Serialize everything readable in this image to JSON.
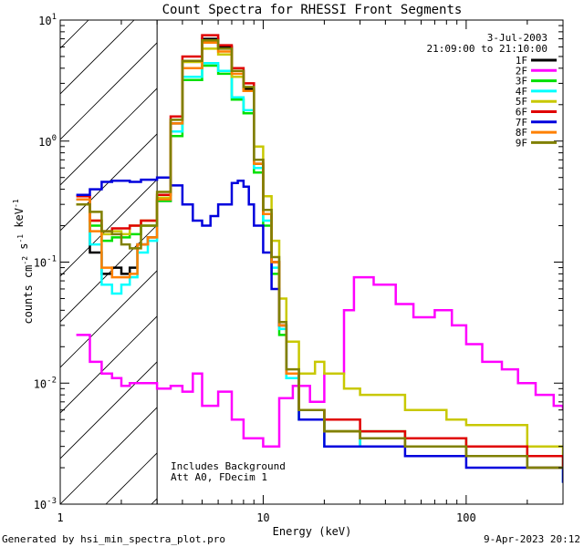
{
  "chart_data": {
    "type": "line",
    "title": "Count Spectra for RHESSI Front Segments",
    "xlabel": "Energy (keV)",
    "ylabel": "counts cm^-2 s^-1 keV^-1",
    "xscale": "log",
    "yscale": "log",
    "xlim": [
      1,
      300
    ],
    "ylim": [
      0.001,
      10
    ],
    "x_tick_labels": [
      "1",
      "10",
      "100"
    ],
    "x_tick_values": [
      1,
      10,
      100
    ],
    "y_tick_labels": [
      "10^-3",
      "10^-2",
      "10^-1",
      "10^0",
      "10^1"
    ],
    "y_tick_values": [
      0.001,
      0.01,
      0.1,
      1,
      10
    ],
    "shaded_region": {
      "x_range": [
        1,
        3
      ],
      "style": "diagonal hatch"
    },
    "date": "3-Jul-2003",
    "time_range": "21:09:00 to 21:10:00",
    "annotations": [
      "Includes Background",
      "Att A0, FDecim 1"
    ],
    "series": [
      {
        "name": "1F",
        "color": "#000000",
        "points": [
          [
            1.2,
            0.33
          ],
          [
            1.4,
            0.12
          ],
          [
            1.6,
            0.08
          ],
          [
            1.8,
            0.09
          ],
          [
            2.0,
            0.08
          ],
          [
            2.2,
            0.09
          ],
          [
            2.4,
            0.14
          ],
          [
            2.7,
            0.16
          ],
          [
            3.0,
            0.32
          ],
          [
            3.5,
            1.4
          ],
          [
            4.0,
            4.6
          ],
          [
            5.0,
            7.0
          ],
          [
            6.0,
            6.0
          ],
          [
            7.0,
            3.8
          ],
          [
            8.0,
            2.7
          ],
          [
            9.0,
            0.65
          ],
          [
            10.0,
            0.25
          ],
          [
            11.0,
            0.1
          ],
          [
            12.0,
            0.03
          ],
          [
            13.0,
            0.012
          ],
          [
            15.0,
            0.006
          ],
          [
            20.0,
            0.004
          ],
          [
            30.0,
            0.003
          ],
          [
            50.0,
            0.003
          ],
          [
            100.0,
            0.0025
          ],
          [
            200.0,
            0.002
          ],
          [
            300.0,
            0.002
          ]
        ]
      },
      {
        "name": "2F",
        "color": "#ff00ff",
        "points": [
          [
            1.2,
            0.025
          ],
          [
            1.4,
            0.015
          ],
          [
            1.6,
            0.012
          ],
          [
            1.8,
            0.011
          ],
          [
            2.0,
            0.0095
          ],
          [
            2.2,
            0.01
          ],
          [
            2.5,
            0.01
          ],
          [
            3.0,
            0.009
          ],
          [
            3.5,
            0.0095
          ],
          [
            4.0,
            0.0085
          ],
          [
            4.5,
            0.012
          ],
          [
            5.0,
            0.0065
          ],
          [
            6.0,
            0.0085
          ],
          [
            7.0,
            0.005
          ],
          [
            8.0,
            0.0035
          ],
          [
            10.0,
            0.003
          ],
          [
            12.0,
            0.0075
          ],
          [
            14.0,
            0.0095
          ],
          [
            17.0,
            0.007
          ],
          [
            20.0,
            0.012
          ],
          [
            25.0,
            0.04
          ],
          [
            28.0,
            0.075
          ],
          [
            35.0,
            0.065
          ],
          [
            45.0,
            0.045
          ],
          [
            55.0,
            0.035
          ],
          [
            70.0,
            0.04
          ],
          [
            85.0,
            0.03
          ],
          [
            100.0,
            0.021
          ],
          [
            120.0,
            0.015
          ],
          [
            150.0,
            0.013
          ],
          [
            180.0,
            0.01
          ],
          [
            220.0,
            0.008
          ],
          [
            270.0,
            0.0065
          ],
          [
            300.0,
            0.006
          ]
        ]
      },
      {
        "name": "3F",
        "color": "#00e000",
        "points": [
          [
            1.2,
            0.3
          ],
          [
            1.4,
            0.2
          ],
          [
            1.6,
            0.15
          ],
          [
            1.8,
            0.16
          ],
          [
            2.0,
            0.16
          ],
          [
            2.2,
            0.17
          ],
          [
            2.5,
            0.2
          ],
          [
            3.0,
            0.32
          ],
          [
            3.5,
            1.1
          ],
          [
            4.0,
            3.2
          ],
          [
            5.0,
            4.2
          ],
          [
            6.0,
            3.6
          ],
          [
            7.0,
            2.2
          ],
          [
            8.0,
            1.7
          ],
          [
            9.0,
            0.55
          ],
          [
            10.0,
            0.2
          ],
          [
            11.0,
            0.08
          ],
          [
            12.0,
            0.025
          ],
          [
            13.0,
            0.011
          ],
          [
            15.0,
            0.005
          ],
          [
            20.0,
            0.004
          ],
          [
            30.0,
            0.004
          ],
          [
            50.0,
            0.0035
          ],
          [
            100.0,
            0.003
          ],
          [
            200.0,
            0.0025
          ],
          [
            300.0,
            0.002
          ]
        ]
      },
      {
        "name": "4F",
        "color": "#00ffff",
        "points": [
          [
            1.2,
            0.33
          ],
          [
            1.4,
            0.14
          ],
          [
            1.6,
            0.065
          ],
          [
            1.8,
            0.055
          ],
          [
            2.0,
            0.065
          ],
          [
            2.2,
            0.075
          ],
          [
            2.4,
            0.12
          ],
          [
            2.7,
            0.15
          ],
          [
            3.0,
            0.33
          ],
          [
            3.5,
            1.2
          ],
          [
            4.0,
            3.4
          ],
          [
            5.0,
            4.4
          ],
          [
            6.0,
            3.8
          ],
          [
            7.0,
            2.3
          ],
          [
            8.0,
            1.8
          ],
          [
            9.0,
            0.6
          ],
          [
            10.0,
            0.22
          ],
          [
            11.0,
            0.09
          ],
          [
            12.0,
            0.028
          ],
          [
            13.0,
            0.011
          ],
          [
            15.0,
            0.005
          ],
          [
            20.0,
            0.003
          ],
          [
            30.0,
            0.0035
          ],
          [
            50.0,
            0.003
          ],
          [
            100.0,
            0.0025
          ],
          [
            200.0,
            0.002
          ],
          [
            300.0,
            0.0015
          ]
        ]
      },
      {
        "name": "5F",
        "color": "#c8c800",
        "points": [
          [
            1.2,
            0.3
          ],
          [
            1.4,
            0.22
          ],
          [
            1.6,
            0.17
          ],
          [
            1.8,
            0.18
          ],
          [
            2.0,
            0.17
          ],
          [
            2.2,
            0.2
          ],
          [
            2.5,
            0.22
          ],
          [
            3.0,
            0.34
          ],
          [
            3.5,
            1.5
          ],
          [
            4.0,
            4.5
          ],
          [
            5.0,
            5.8
          ],
          [
            6.0,
            5.2
          ],
          [
            7.0,
            3.4
          ],
          [
            8.0,
            2.6
          ],
          [
            9.0,
            0.9
          ],
          [
            10.0,
            0.35
          ],
          [
            11.0,
            0.15
          ],
          [
            12.0,
            0.05
          ],
          [
            13.0,
            0.022
          ],
          [
            15.0,
            0.012
          ],
          [
            18.0,
            0.015
          ],
          [
            20.0,
            0.012
          ],
          [
            25.0,
            0.009
          ],
          [
            30.0,
            0.008
          ],
          [
            50.0,
            0.006
          ],
          [
            80.0,
            0.005
          ],
          [
            100.0,
            0.0045
          ],
          [
            200.0,
            0.003
          ],
          [
            300.0,
            0.0025
          ]
        ]
      },
      {
        "name": "6F",
        "color": "#e00000",
        "points": [
          [
            1.2,
            0.35
          ],
          [
            1.4,
            0.22
          ],
          [
            1.6,
            0.18
          ],
          [
            1.8,
            0.19
          ],
          [
            2.0,
            0.19
          ],
          [
            2.2,
            0.2
          ],
          [
            2.5,
            0.22
          ],
          [
            3.0,
            0.36
          ],
          [
            3.5,
            1.6
          ],
          [
            4.0,
            5.0
          ],
          [
            5.0,
            7.5
          ],
          [
            6.0,
            6.2
          ],
          [
            7.0,
            4.0
          ],
          [
            8.0,
            3.0
          ],
          [
            9.0,
            0.7
          ],
          [
            10.0,
            0.25
          ],
          [
            11.0,
            0.1
          ],
          [
            12.0,
            0.03
          ],
          [
            13.0,
            0.012
          ],
          [
            15.0,
            0.006
          ],
          [
            20.0,
            0.005
          ],
          [
            30.0,
            0.004
          ],
          [
            50.0,
            0.0035
          ],
          [
            100.0,
            0.003
          ],
          [
            200.0,
            0.0025
          ],
          [
            300.0,
            0.002
          ]
        ]
      },
      {
        "name": "7F",
        "color": "#0000dd",
        "points": [
          [
            1.2,
            0.36
          ],
          [
            1.4,
            0.4
          ],
          [
            1.6,
            0.46
          ],
          [
            1.8,
            0.47
          ],
          [
            2.0,
            0.47
          ],
          [
            2.2,
            0.46
          ],
          [
            2.5,
            0.48
          ],
          [
            3.0,
            0.5
          ],
          [
            3.5,
            0.43
          ],
          [
            4.0,
            0.3
          ],
          [
            4.5,
            0.22
          ],
          [
            5.0,
            0.2
          ],
          [
            5.5,
            0.24
          ],
          [
            6.0,
            0.3
          ],
          [
            7.0,
            0.45
          ],
          [
            7.5,
            0.47
          ],
          [
            8.0,
            0.42
          ],
          [
            8.5,
            0.3
          ],
          [
            9.0,
            0.2
          ],
          [
            10.0,
            0.12
          ],
          [
            11.0,
            0.06
          ],
          [
            12.0,
            0.03
          ],
          [
            13.0,
            0.012
          ],
          [
            15.0,
            0.005
          ],
          [
            20.0,
            0.003
          ],
          [
            30.0,
            0.003
          ],
          [
            50.0,
            0.0025
          ],
          [
            100.0,
            0.002
          ],
          [
            200.0,
            0.002
          ],
          [
            300.0,
            0.0015
          ]
        ]
      },
      {
        "name": "8F",
        "color": "#ff8000",
        "points": [
          [
            1.2,
            0.33
          ],
          [
            1.4,
            0.18
          ],
          [
            1.6,
            0.09
          ],
          [
            1.8,
            0.075
          ],
          [
            2.0,
            0.075
          ],
          [
            2.2,
            0.08
          ],
          [
            2.4,
            0.14
          ],
          [
            2.7,
            0.16
          ],
          [
            3.0,
            0.33
          ],
          [
            3.5,
            1.4
          ],
          [
            4.0,
            4.0
          ],
          [
            5.0,
            6.5
          ],
          [
            6.0,
            5.5
          ],
          [
            7.0,
            3.6
          ],
          [
            8.0,
            2.6
          ],
          [
            9.0,
            0.65
          ],
          [
            10.0,
            0.25
          ],
          [
            11.0,
            0.1
          ],
          [
            12.0,
            0.03
          ],
          [
            13.0,
            0.012
          ],
          [
            15.0,
            0.006
          ],
          [
            20.0,
            0.004
          ],
          [
            30.0,
            0.0035
          ],
          [
            50.0,
            0.003
          ],
          [
            100.0,
            0.0025
          ],
          [
            200.0,
            0.002
          ],
          [
            300.0,
            0.002
          ]
        ]
      },
      {
        "name": "9F",
        "color": "#808000",
        "points": [
          [
            1.2,
            0.3
          ],
          [
            1.4,
            0.26
          ],
          [
            1.6,
            0.18
          ],
          [
            1.8,
            0.17
          ],
          [
            2.0,
            0.14
          ],
          [
            2.2,
            0.13
          ],
          [
            2.5,
            0.2
          ],
          [
            3.0,
            0.38
          ],
          [
            3.5,
            1.5
          ],
          [
            4.0,
            4.6
          ],
          [
            5.0,
            6.8
          ],
          [
            6.0,
            5.8
          ],
          [
            7.0,
            3.8
          ],
          [
            8.0,
            2.8
          ],
          [
            9.0,
            0.7
          ],
          [
            10.0,
            0.27
          ],
          [
            11.0,
            0.11
          ],
          [
            12.0,
            0.032
          ],
          [
            13.0,
            0.013
          ],
          [
            15.0,
            0.006
          ],
          [
            20.0,
            0.004
          ],
          [
            30.0,
            0.0035
          ],
          [
            50.0,
            0.003
          ],
          [
            100.0,
            0.0025
          ],
          [
            200.0,
            0.002
          ],
          [
            300.0,
            0.002
          ]
        ]
      }
    ]
  },
  "footer": {
    "left": "Generated by hsi_min_spectra_plot.pro",
    "right": "9-Apr-2023 20:12"
  }
}
